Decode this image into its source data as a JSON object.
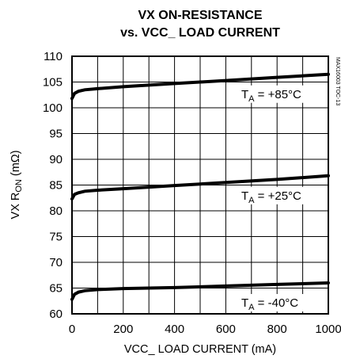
{
  "chart_data": {
    "type": "line",
    "title_line1": "VX ON-RESISTANCE",
    "title_line2": "vs. VCC_  LOAD CURRENT",
    "xlabel": "VCC_  LOAD CURRENT (mA)",
    "ylabel_main": "VX R",
    "ylabel_sub": "ON",
    "ylabel_unit": " (mΩ)",
    "side_note": "MAX16003 TOC-13",
    "xlim": [
      0,
      1000
    ],
    "ylim": [
      60,
      110
    ],
    "x_ticks": [
      0,
      200,
      400,
      600,
      800,
      1000
    ],
    "y_ticks": [
      60,
      65,
      70,
      75,
      80,
      85,
      90,
      95,
      100,
      105,
      110
    ],
    "grid": true,
    "series": [
      {
        "name_main": "T",
        "name_sub": "A",
        "name_rest": " = +85°C",
        "x": [
          0,
          10,
          25,
          50,
          100,
          200,
          400,
          600,
          800,
          1000
        ],
        "values": [
          101.8,
          102.8,
          103.2,
          103.5,
          103.7,
          104.1,
          104.7,
          105.3,
          105.9,
          106.5
        ]
      },
      {
        "name_main": "T",
        "name_sub": "A",
        "name_rest": " = +25°C",
        "x": [
          0,
          10,
          25,
          50,
          100,
          200,
          400,
          600,
          800,
          1000
        ],
        "values": [
          82.3,
          83.2,
          83.5,
          83.8,
          84.0,
          84.3,
          84.9,
          85.5,
          86.1,
          86.8
        ]
      },
      {
        "name_main": "T",
        "name_sub": "A",
        "name_rest": " = -40°C",
        "x": [
          0,
          10,
          25,
          50,
          100,
          200,
          400,
          600,
          800,
          1000
        ],
        "values": [
          62.8,
          63.8,
          64.2,
          64.5,
          64.7,
          64.9,
          65.1,
          65.4,
          65.7,
          66.0
        ]
      }
    ]
  }
}
